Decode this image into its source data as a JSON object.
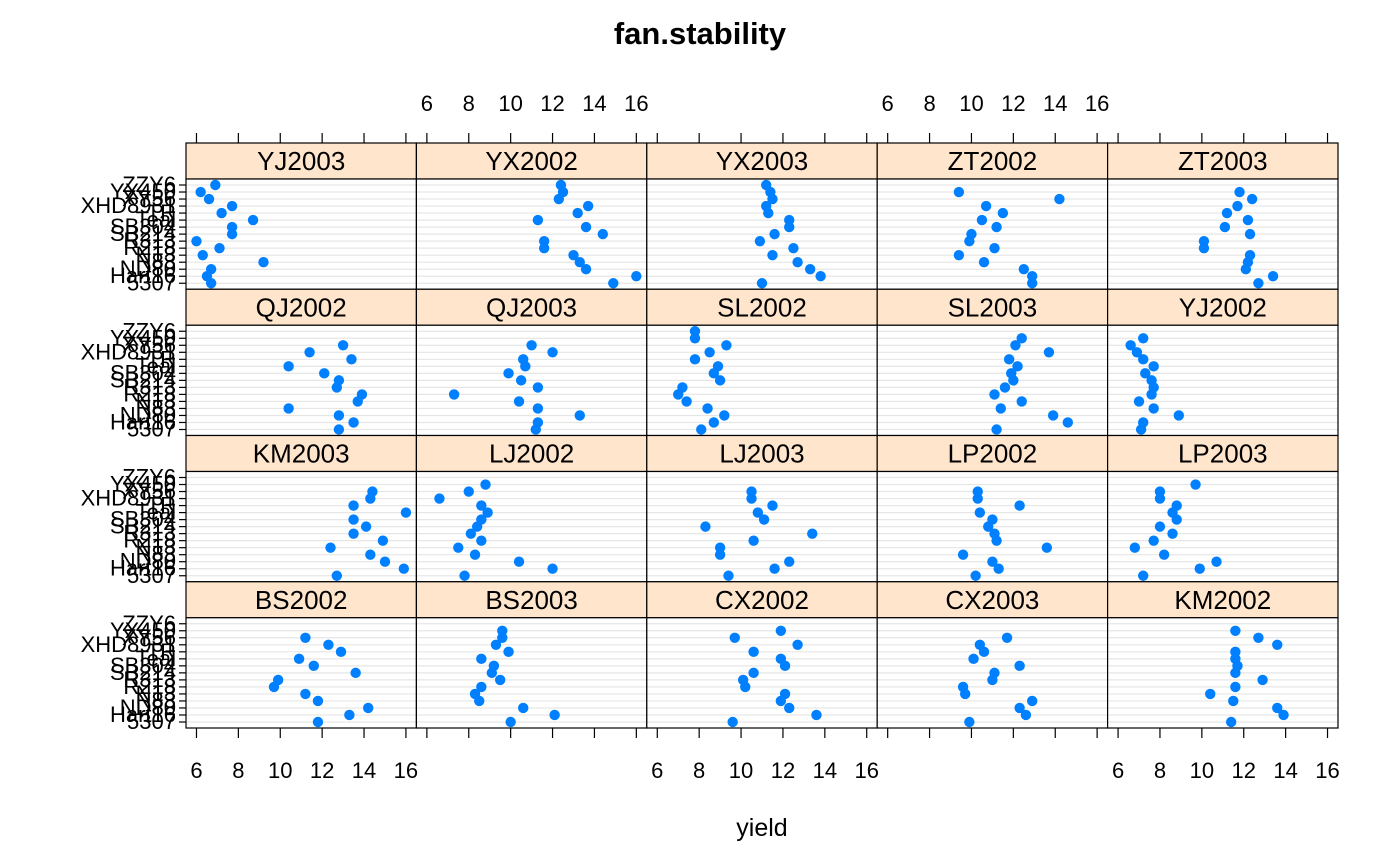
{
  "chart_data": {
    "type": "scatter",
    "title": "fan.stability",
    "xlabel": "yield",
    "ylabel": "",
    "xlim": [
      5.5,
      16.5
    ],
    "x_ticks": [
      6,
      8,
      10,
      12,
      14,
      16
    ],
    "marker_color": "#0080ff",
    "strip_color": "#ffe5cc",
    "grid": true,
    "y_categories": [
      "5307",
      "Hart16",
      "ND80",
      "N83",
      "N13",
      "R218",
      "R313",
      "SB214",
      "SB304",
      "Teal",
      "TR",
      "XHD8931",
      "XY56",
      "YX450",
      "ZZY6"
    ],
    "panel_rows": [
      [
        "YJ2003",
        "YX2002",
        "YX2003",
        "ZT2002",
        "ZT2003"
      ],
      [
        "QJ2002",
        "QJ2003",
        "SL2002",
        "SL2003",
        "YJ2002"
      ],
      [
        "KM2003",
        "LJ2002",
        "LJ2003",
        "LP2002",
        "LP2003"
      ],
      [
        "BS2002",
        "BS2003",
        "CX2002",
        "CX2003",
        "KM2002"
      ]
    ],
    "panels": {
      "YJ2003": [
        6.7,
        6.5,
        6.7,
        9.2,
        6.3,
        7.1,
        6.0,
        7.7,
        7.7,
        8.7,
        7.2,
        7.7,
        6.6,
        6.2,
        6.9
      ],
      "YX2002": [
        14.9,
        16.0,
        13.6,
        13.3,
        13.0,
        11.6,
        11.6,
        14.4,
        13.6,
        11.3,
        13.2,
        13.7,
        12.3,
        12.5,
        12.4
      ],
      "YX2003": [
        11.0,
        13.8,
        13.3,
        12.7,
        11.5,
        12.5,
        10.9,
        11.6,
        12.3,
        12.3,
        11.3,
        11.2,
        11.5,
        11.4,
        11.2
      ],
      "ZT2002": [
        12.9,
        12.9,
        12.5,
        10.6,
        9.4,
        11.1,
        9.9,
        10.0,
        11.2,
        10.5,
        11.5,
        10.7,
        14.2,
        9.4
      ],
      "ZT2003": [
        12.7,
        13.4,
        12.1,
        12.2,
        12.3,
        10.1,
        10.1,
        12.3,
        11.1,
        12.2,
        11.2,
        11.7,
        12.4,
        11.8
      ],
      "QJ2002": [
        12.8,
        13.5,
        12.8,
        10.4,
        13.7,
        13.9,
        12.7,
        12.8,
        12.1,
        10.4,
        13.4,
        11.4,
        13.0
      ],
      "QJ2003": [
        11.2,
        11.3,
        13.3,
        11.3,
        10.4,
        7.3,
        11.3,
        10.5,
        9.9,
        10.7,
        10.6,
        12.0,
        11.0
      ],
      "SL2002": [
        8.1,
        8.7,
        9.2,
        8.4,
        7.4,
        7.0,
        7.2,
        9.0,
        8.7,
        8.9,
        7.8,
        8.5,
        9.3,
        7.8,
        7.8
      ],
      "SL2003": [
        11.2,
        14.6,
        13.9,
        11.4,
        12.4,
        11.1,
        11.6,
        12.0,
        11.9,
        12.2,
        11.8,
        13.7,
        12.1,
        12.4
      ],
      "YJ2002": [
        7.1,
        7.2,
        8.9,
        7.7,
        7.0,
        7.6,
        7.7,
        7.6,
        7.3,
        7.7,
        7.2,
        6.9,
        6.6,
        7.2
      ],
      "KM2003": [
        12.7,
        15.9,
        15.0,
        14.3,
        12.4,
        14.9,
        13.5,
        14.1,
        13.5,
        16.0,
        13.5,
        14.3,
        14.4
      ],
      "LJ2002": [
        7.8,
        12.0,
        10.4,
        8.3,
        7.5,
        8.6,
        8.1,
        8.4,
        8.6,
        8.9,
        8.6,
        6.6,
        8.0,
        8.8
      ],
      "LJ2003": [
        9.4,
        11.6,
        12.3,
        9.0,
        9.0,
        10.6,
        13.4,
        8.3,
        11.1,
        10.8,
        11.5,
        10.5,
        10.5
      ],
      "LP2002": [
        10.2,
        11.3,
        11.0,
        9.6,
        13.6,
        11.2,
        11.1,
        10.8,
        11.0,
        10.4,
        12.3,
        10.3,
        10.3
      ],
      "LP2003": [
        7.2,
        9.9,
        10.7,
        8.2,
        6.8,
        7.7,
        8.6,
        8.0,
        8.8,
        8.6,
        8.8,
        8.0,
        8.0,
        9.7
      ],
      "BS2002": [
        11.8,
        13.3,
        14.2,
        11.8,
        11.2,
        9.7,
        9.9,
        13.6,
        11.6,
        10.9,
        12.9,
        12.3,
        11.2
      ],
      "BS2003": [
        10.0,
        12.1,
        10.6,
        8.5,
        8.3,
        8.6,
        9.5,
        9.1,
        9.2,
        8.6,
        9.9,
        9.3,
        9.6,
        9.6
      ],
      "CX2002": [
        9.6,
        13.6,
        12.3,
        11.9,
        12.1,
        10.2,
        10.1,
        10.6,
        12.1,
        11.9,
        10.6,
        12.7,
        9.7,
        11.9
      ],
      "CX2003": [
        9.9,
        12.6,
        12.3,
        12.9,
        9.7,
        9.6,
        11.0,
        11.1,
        12.3,
        10.1,
        10.6,
        10.4,
        11.7
      ],
      "KM2002": [
        11.4,
        13.9,
        13.6,
        11.5,
        10.4,
        11.6,
        12.9,
        11.6,
        11.7,
        11.6,
        11.6,
        13.6,
        12.7,
        11.6
      ]
    }
  }
}
